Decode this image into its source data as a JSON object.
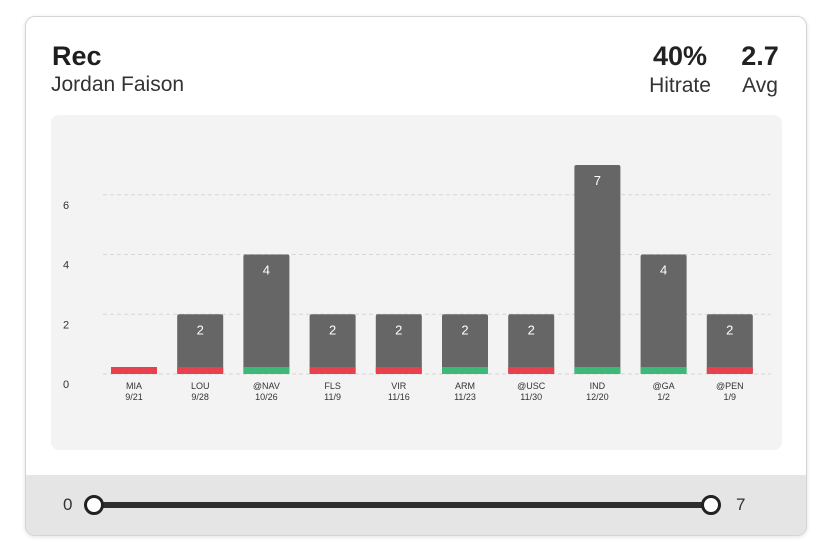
{
  "header": {
    "title": "Rec",
    "player": "Jordan Faison",
    "hitrate_value": "40%",
    "hitrate_label": "Hitrate",
    "avg_value": "2.7",
    "avg_label": "Avg"
  },
  "chart_data": {
    "type": "bar",
    "ylim": [
      0,
      7.4
    ],
    "y_ticks": [
      0,
      2,
      4,
      6
    ],
    "grid": true,
    "categories": [
      "MIA",
      "LOU",
      "@NAV",
      "FLS",
      "VIR",
      "ARM",
      "@USC",
      "IND",
      "@GA",
      "@PEN"
    ],
    "dates": [
      "9/21",
      "9/28",
      "10/26",
      "11/9",
      "11/16",
      "11/23",
      "11/30",
      "12/20",
      "1/2",
      "1/9"
    ],
    "values": [
      0,
      2,
      4,
      2,
      2,
      2,
      2,
      7,
      4,
      2
    ],
    "hit": [
      false,
      false,
      true,
      false,
      false,
      true,
      false,
      true,
      true,
      false
    ],
    "colors": {
      "bar": "#666666",
      "hit": "#3cb878",
      "miss": "#e8414e",
      "grid": "#d6d6d6"
    }
  },
  "slider": {
    "min_label": "0",
    "max_label": "7",
    "min_value": 0,
    "max_value": 7
  }
}
